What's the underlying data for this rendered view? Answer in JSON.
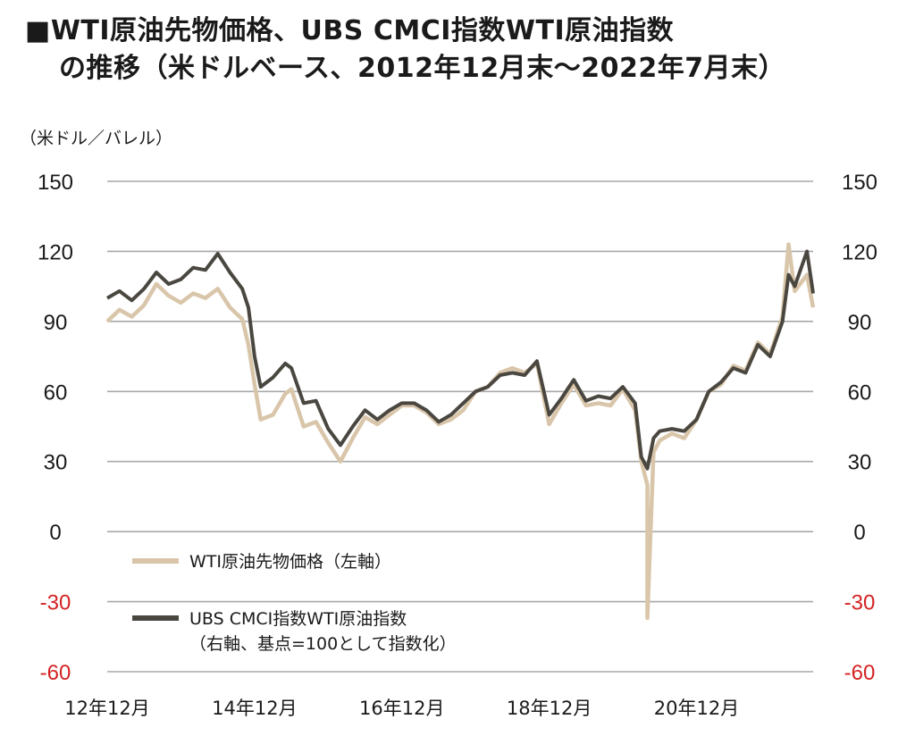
{
  "title": {
    "line1": "■WTI原油先物価格、UBS CMCI指数WTI原油指数",
    "line2": "の推移（米ドルベース、2012年12月末～2022年7月末）"
  },
  "unit_label": "（米ドル／バレル）",
  "colors": {
    "wti": "#d9c6aa",
    "ubs": "#4a4740",
    "grid": "#a8a8a8",
    "negative_tick": "#d42323"
  },
  "chart_data": {
    "type": "line",
    "title": "WTI原油先物価格、UBS CMCI指数WTI原油指数の推移（米ドルベース、2012年12月末～2022年7月末）",
    "ylabel": "（米ドル／バレル）",
    "ylim": [
      -60,
      150
    ],
    "yticks": [
      "150",
      "120",
      "90",
      "60",
      "30",
      "0",
      "-30",
      "-60"
    ],
    "y2ticks": [
      "150",
      "120",
      "90",
      "60",
      "30",
      "0",
      "-30",
      "-60"
    ],
    "xticks": [
      "12年12月",
      "14年12月",
      "16年12月",
      "18年12月",
      "20年12月"
    ],
    "grid": true,
    "legend_position": "bottom-left",
    "series": [
      {
        "name": "WTI原油先物価格（左軸）",
        "axis": "left",
        "color": "#d9c6aa",
        "x": [
          "2012-12",
          "2013-02",
          "2013-04",
          "2013-06",
          "2013-08",
          "2013-10",
          "2013-12",
          "2014-02",
          "2014-04",
          "2014-06",
          "2014-08",
          "2014-10",
          "2014-11",
          "2014-12",
          "2015-01",
          "2015-03",
          "2015-05",
          "2015-06",
          "2015-08",
          "2015-10",
          "2015-12",
          "2016-02",
          "2016-04",
          "2016-06",
          "2016-08",
          "2016-10",
          "2016-12",
          "2017-02",
          "2017-04",
          "2017-06",
          "2017-08",
          "2017-10",
          "2017-12",
          "2018-02",
          "2018-04",
          "2018-06",
          "2018-08",
          "2018-10",
          "2018-12",
          "2019-02",
          "2019-04",
          "2019-06",
          "2019-08",
          "2019-10",
          "2019-12",
          "2020-02",
          "2020-03",
          "2020-04",
          "2020-04",
          "2020-05",
          "2020-06",
          "2020-08",
          "2020-10",
          "2020-12",
          "2021-02",
          "2021-04",
          "2021-06",
          "2021-08",
          "2021-10",
          "2021-12",
          "2022-02",
          "2022-03",
          "2022-04",
          "2022-06",
          "2022-07"
        ],
        "values": [
          90,
          95,
          92,
          97,
          106,
          101,
          98,
          102,
          100,
          104,
          96,
          91,
          80,
          63,
          48,
          50,
          59,
          61,
          45,
          47,
          38,
          30,
          40,
          49,
          46,
          50,
          54,
          54,
          51,
          46,
          48,
          52,
          60,
          62,
          68,
          70,
          68,
          72,
          46,
          55,
          63,
          54,
          55,
          54,
          61,
          52,
          30,
          20,
          -37,
          34,
          39,
          42,
          40,
          48,
          60,
          63,
          71,
          69,
          81,
          76,
          92,
          123,
          103,
          110,
          96
        ]
      },
      {
        "name": "UBS CMCI指数WTI原油指数",
        "note": "（右軸、基点=100として指数化）",
        "axis": "right",
        "color": "#4a4740",
        "x": [
          "2012-12",
          "2013-02",
          "2013-04",
          "2013-06",
          "2013-08",
          "2013-10",
          "2013-12",
          "2014-02",
          "2014-04",
          "2014-06",
          "2014-08",
          "2014-10",
          "2014-11",
          "2014-12",
          "2015-01",
          "2015-03",
          "2015-05",
          "2015-06",
          "2015-08",
          "2015-10",
          "2015-12",
          "2016-02",
          "2016-04",
          "2016-06",
          "2016-08",
          "2016-10",
          "2016-12",
          "2017-02",
          "2017-04",
          "2017-06",
          "2017-08",
          "2017-10",
          "2017-12",
          "2018-02",
          "2018-04",
          "2018-06",
          "2018-08",
          "2018-10",
          "2018-12",
          "2019-02",
          "2019-04",
          "2019-06",
          "2019-08",
          "2019-10",
          "2019-12",
          "2020-02",
          "2020-03",
          "2020-04",
          "2020-05",
          "2020-06",
          "2020-08",
          "2020-10",
          "2020-12",
          "2021-02",
          "2021-04",
          "2021-06",
          "2021-08",
          "2021-10",
          "2021-12",
          "2022-02",
          "2022-03",
          "2022-04",
          "2022-06",
          "2022-07"
        ],
        "values": [
          100,
          103,
          99,
          104,
          111,
          106,
          108,
          113,
          112,
          119,
          111,
          104,
          96,
          75,
          62,
          66,
          72,
          70,
          55,
          56,
          44,
          37,
          45,
          52,
          48,
          52,
          55,
          55,
          52,
          47,
          50,
          55,
          60,
          62,
          67,
          68,
          67,
          73,
          50,
          57,
          65,
          56,
          58,
          57,
          62,
          55,
          32,
          27,
          40,
          43,
          44,
          43,
          48,
          60,
          64,
          70,
          68,
          80,
          75,
          90,
          110,
          105,
          120,
          102
        ]
      }
    ]
  },
  "legend": {
    "wti_label": "WTI原油先物価格（左軸）",
    "ubs_label": "UBS CMCI指数WTI原油指数",
    "ubs_note": "（右軸、基点=100として指数化）"
  }
}
